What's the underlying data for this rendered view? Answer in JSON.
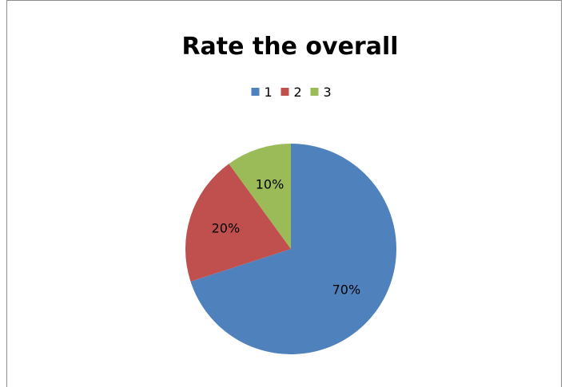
{
  "chart_data": {
    "type": "pie",
    "title": "Rate the overall",
    "legend_position": "top",
    "categories": [
      "1",
      "2",
      "3"
    ],
    "values": [
      70,
      20,
      10
    ],
    "data_labels": [
      "70%",
      "20%",
      "10%"
    ],
    "colors": [
      "#4f81bd",
      "#c0504d",
      "#9bbb59"
    ],
    "start_angle_deg": 0,
    "direction": "clockwise"
  }
}
